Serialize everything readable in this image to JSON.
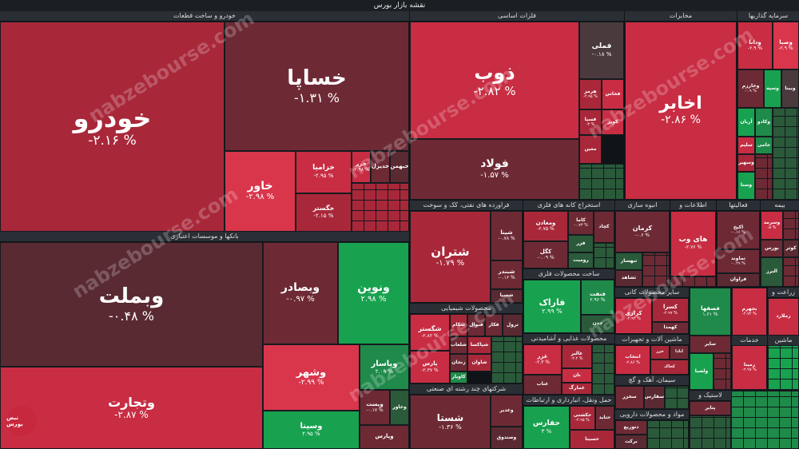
{
  "title": "نقشه بازار بورس",
  "watermark": "nabzebourse.com",
  "logo_text": "نبض بورس",
  "sectors": {
    "auto": "خودرو و ساخت قطعات",
    "banks": "بانکها و موسسات اعتباری",
    "metals": "فلزات اساسی",
    "telecom": "مخابرات",
    "invest": "سرمایه گذاریها",
    "oil": "فراورده های نفتی، کک و سوخت",
    "mining": "استخراج کانه های فلزی",
    "mass": "انبوه سازی",
    "info": "اطلاعات و",
    "misc": "فعالیتها",
    "insurance": "بیمه",
    "chemical": "محصولات شیمیایی",
    "metalprod": "ساخت محصولات فلزی",
    "food": "محصولات غذایی و آشامیدنی",
    "multi": "شرکتهای چند رشته ای صنعتی",
    "transport": "حمل ونقل، انبارداری و ارتباطات",
    "nonmetal": "سایر محصولات کانی",
    "machinery": "ماشین آلات و تجهیزات",
    "cement": "سیمان، آهک و گچ",
    "pharma": "مواد و محصولات دارویی",
    "rubber": "لاستیک و",
    "agri": "زراعت و",
    "services": "خدمات",
    "vehicle": "ماشین"
  },
  "tiles": {
    "khodro": {
      "name": "خودرو",
      "pct": "-۲.۱۶ %"
    },
    "khsapa": {
      "name": "خساپا",
      "pct": "-۱.۳۱ %"
    },
    "khavar": {
      "name": "خاور",
      "pct": "-۲.۹۸ %"
    },
    "khazamia": {
      "name": "خزامیا",
      "pct": "-۲.۹۵ %"
    },
    "khgostar": {
      "name": "خگستر",
      "pct": "-۲.۱۵ %"
    },
    "khazar": {
      "name": "خزر",
      "pct": "-۲.۹۸ %"
    },
    "khodikil": {
      "name": "خدیزل",
      "pct": ""
    },
    "khbahman": {
      "name": "خبهمن",
      "pct": ""
    },
    "vbmelat": {
      "name": "وبملت",
      "pct": "-۰.۴۸ %"
    },
    "vbsader": {
      "name": "وبصادر",
      "pct": "-۰.۹۷ %"
    },
    "vnovin": {
      "name": "ونوین",
      "pct": "۲.۹۸ %"
    },
    "vtejarat": {
      "name": "وتجارت",
      "pct": "-۲.۸۷ %"
    },
    "vshahr": {
      "name": "وشهر",
      "pct": "-۲.۹۹ %"
    },
    "vpasar": {
      "name": "وپاسار",
      "pct": "۲.۰۹ %"
    },
    "vsina": {
      "name": "وسینا",
      "pct": "۲.۹۵ %"
    },
    "vpost": {
      "name": "وپست",
      "pct": "-۰.۱۷ %"
    },
    "vkhavar": {
      "name": "وخاور",
      "pct": ""
    },
    "vpars": {
      "name": "وپارس",
      "pct": ""
    },
    "zob": {
      "name": "ذوب",
      "pct": "-۲.۸۲ %"
    },
    "foolad": {
      "name": "فولاد",
      "pct": "-۱.۵۷ %"
    },
    "fameli": {
      "name": "فملی",
      "pct": "-۰.۱۸ %"
    },
    "hormoz": {
      "name": "هرمز",
      "pct": "-۲.۹۵ %"
    },
    "fesapa": {
      "name": "فسپا",
      "pct": "-۳ %"
    },
    "kouh": {
      "name": "کویر",
      "pct": ""
    },
    "fkhas": {
      "name": "فخاس",
      "pct": ""
    },
    "maaden": {
      "name": "معین",
      "pct": ""
    },
    "akhaber": {
      "name": "اخابر",
      "pct": "-۲.۸۶ %"
    },
    "vdana": {
      "name": "ودانا",
      "pct": "-۲.۹ %"
    },
    "vsaba": {
      "name": "وصبا",
      "pct": "-۲.۹ %"
    },
    "vkharazm": {
      "name": "وخارزم",
      "pct": "-۰.۹ %"
    },
    "vsaip": {
      "name": "وسپه",
      "pct": ""
    },
    "vsina2": {
      "name": "وبینا",
      "pct": ""
    },
    "aryan": {
      "name": "آریان",
      "pct": ""
    },
    "vkado": {
      "name": "وکادو",
      "pct": ""
    },
    "salim": {
      "name": "سلیم",
      "pct": ""
    },
    "jami": {
      "name": "جامی",
      "pct": ""
    },
    "vsahyar": {
      "name": "وسهیر",
      "pct": ""
    },
    "vsana": {
      "name": "وسنا",
      "pct": ""
    },
    "shetran": {
      "name": "شتران",
      "pct": "-۱.۷۹ %"
    },
    "shepna": {
      "name": "شپنا",
      "pct": "-۰.۷۸ %"
    },
    "shbandar": {
      "name": "شبندر",
      "pct": "-۰.۱۶ %"
    },
    "shesina": {
      "name": "شسپا",
      "pct": ""
    },
    "vmadan": {
      "name": "ومعادن",
      "pct": "-۲.۷۵ %"
    },
    "kama": {
      "name": "کاما",
      "pct": "-۰.۷۳ %"
    },
    "kegol": {
      "name": "کگل",
      "pct": "-۰.۰۹ %"
    },
    "fazar": {
      "name": "فزر",
      "pct": ""
    },
    "kchad": {
      "name": "کچاد",
      "pct": ""
    },
    "roumit": {
      "name": "رومیت",
      "pct": ""
    },
    "kerman": {
      "name": "کرمان",
      "pct": "-۰.۶ %"
    },
    "thesaz": {
      "name": "ثبهساز",
      "pct": ""
    },
    "tshahed": {
      "name": "ثشاهد",
      "pct": ""
    },
    "haiveb": {
      "name": "های وب",
      "pct": "-۲.۷۶ %"
    },
    "kchh": {
      "name": "اکیخ",
      "pct": "-۰.۱۶ %"
    },
    "tmalad": {
      "name": "تماوند",
      "pct": "-۰.۲۹ %"
    },
    "faravar": {
      "name": "فراوان",
      "pct": ""
    },
    "vsarmad": {
      "name": "وسرمد",
      "pct": "-۵ %"
    },
    "bors": {
      "name": "بورس",
      "pct": ""
    },
    "kothar": {
      "name": "کوثر",
      "pct": ""
    },
    "alborz": {
      "name": "البرز",
      "pct": ""
    },
    "shegostar": {
      "name": "شگستر",
      "pct": "-۲.۸۲ %"
    },
    "shekam": {
      "name": "شکام",
      "pct": ""
    },
    "shpaksa": {
      "name": "شپاکسا",
      "pct": ""
    },
    "parsan": {
      "name": "پارس",
      "pct": "-۲.۳۷ %"
    },
    "zanjan": {
      "name": "زنجان",
      "pct": ""
    },
    "kaviar": {
      "name": "کاویار",
      "pct": ""
    },
    "shavan": {
      "name": "شاوان",
      "pct": ""
    },
    "shlab": {
      "name": "شلعاب",
      "pct": ""
    },
    "shkhaz": {
      "name": "شخارک",
      "pct": ""
    },
    "fkar": {
      "name": "فکار",
      "pct": ""
    },
    "fnavar": {
      "name": "فنوال",
      "pct": ""
    },
    "trol": {
      "name": "ترول",
      "pct": ""
    },
    "farak": {
      "name": "فاراک",
      "pct": "۲.۹۹ %"
    },
    "fenvar": {
      "name": "فنفت",
      "pct": "۲.۹۶ %"
    },
    "chadan": {
      "name": "چدن",
      "pct": ""
    },
    "ghezar": {
      "name": "غزر",
      "pct": "-۲.۳ %"
    },
    "ghalbor": {
      "name": "غالبر",
      "pct": "-۲.۲ %"
    },
    "tan": {
      "name": "نان",
      "pct": ""
    },
    "ghenab": {
      "name": "غناب",
      "pct": ""
    },
    "bhmad": {
      "name": "غمارگ",
      "pct": ""
    },
    "shasta": {
      "name": "شستا",
      "pct": "-۱.۳۶ %"
    },
    "vghdir": {
      "name": "وغدیر",
      "pct": ""
    },
    "vsandogh": {
      "name": "وصندوق",
      "pct": ""
    },
    "hafars": {
      "name": "حفارس",
      "pct": "۳ %"
    },
    "hkeshti": {
      "name": "حکشتی",
      "pct": "-۲.۹۵ %"
    },
    "hjadid": {
      "name": "حتاید",
      "pct": ""
    },
    "hsina": {
      "name": "حسینا",
      "pct": ""
    },
    "kesra": {
      "name": "کسرا",
      "pct": "-۲.۹۷ %"
    },
    "kerazi": {
      "name": "کرازی",
      "pct": "-۲.۹۳ %"
    },
    "kahmeda": {
      "name": "کهمدا",
      "pct": ""
    },
    "ekhtab": {
      "name": "انتخاب",
      "pct": "-۲.۸۶ %"
    },
    "khazar2": {
      "name": "خزر",
      "pct": ""
    },
    "ebadan": {
      "name": "ابادا",
      "pct": ""
    },
    "kkhaz": {
      "name": "کخاک",
      "pct": ""
    },
    "sekhzar": {
      "name": "سخزر",
      "pct": ""
    },
    "sfars": {
      "name": "سفارس",
      "pct": ""
    },
    "dtouzi": {
      "name": "دتوزیع",
      "pct": ""
    },
    "barakat": {
      "name": "برکت",
      "pct": ""
    },
    "fasaha": {
      "name": "فصفها",
      "pct": "۱.۶۱ %"
    },
    "vlasaba": {
      "name": "ولصبا",
      "pct": ""
    },
    "sayer": {
      "name": "سایر",
      "pct": ""
    },
    "bjahrom": {
      "name": "بجهرم",
      "pct": "-۲.۷۲ %"
    },
    "rmapna": {
      "name": "رمپنا",
      "pct": "-۲.۹۷ %"
    },
    "zmalard": {
      "name": "زملارد",
      "pct": ""
    },
    "petaer": {
      "name": "پتایر",
      "pct": ""
    }
  }
}
